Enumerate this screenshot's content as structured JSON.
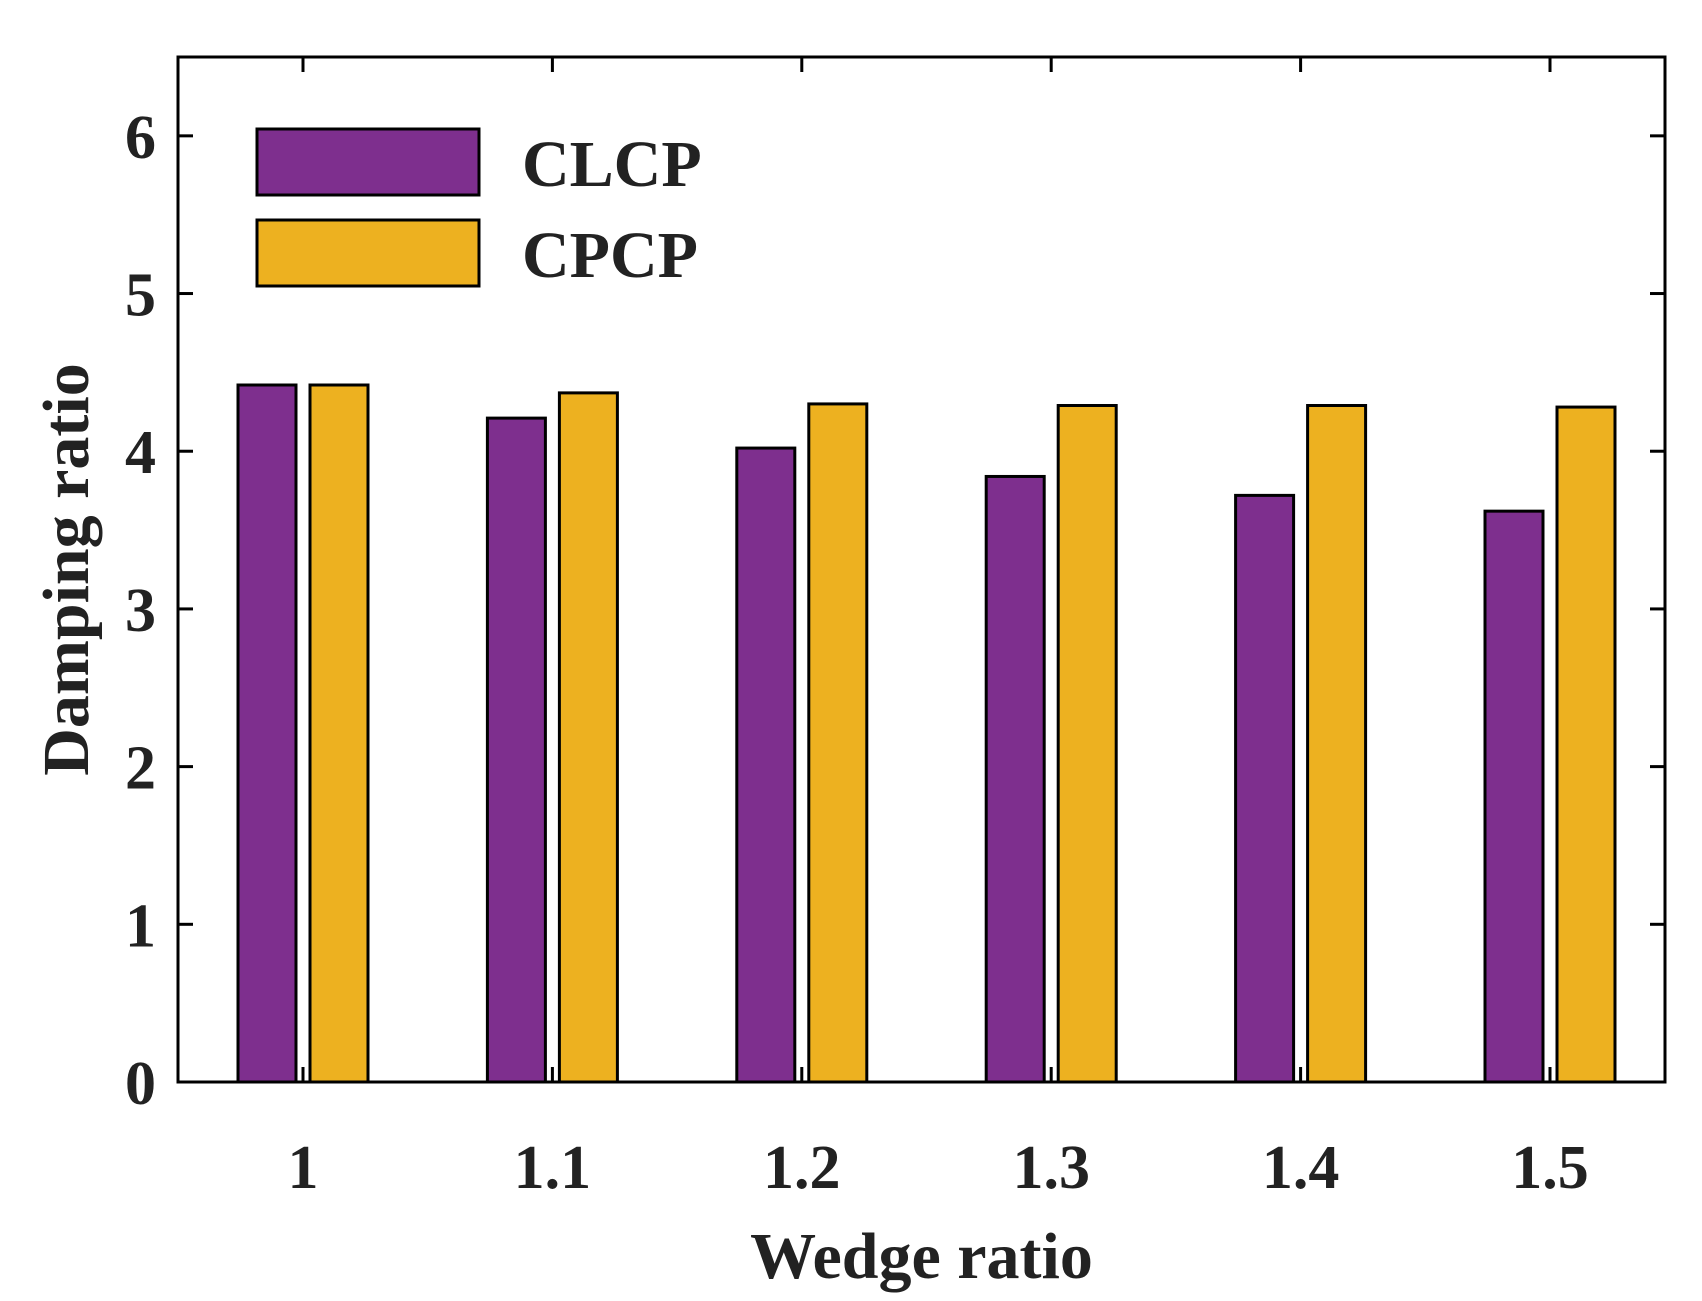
{
  "chart_data": {
    "type": "bar",
    "title": "",
    "xlabel": "Wedge ratio",
    "ylabel": "Damping ratio",
    "categories": [
      "1",
      "1.1",
      "1.2",
      "1.3",
      "1.4",
      "1.5"
    ],
    "series": [
      {
        "name": "CLCP",
        "color": "#7e2f8e",
        "values": [
          4.42,
          4.21,
          4.02,
          3.84,
          3.72,
          3.62
        ]
      },
      {
        "name": "CPCP",
        "color": "#edb120",
        "values": [
          4.42,
          4.37,
          4.3,
          4.29,
          4.29,
          4.28
        ]
      }
    ],
    "ylim": [
      0,
      6.5
    ],
    "yticks": [
      "0",
      "1",
      "2",
      "3",
      "4",
      "5",
      "6"
    ],
    "grid": false,
    "legend_position": "top-left"
  }
}
